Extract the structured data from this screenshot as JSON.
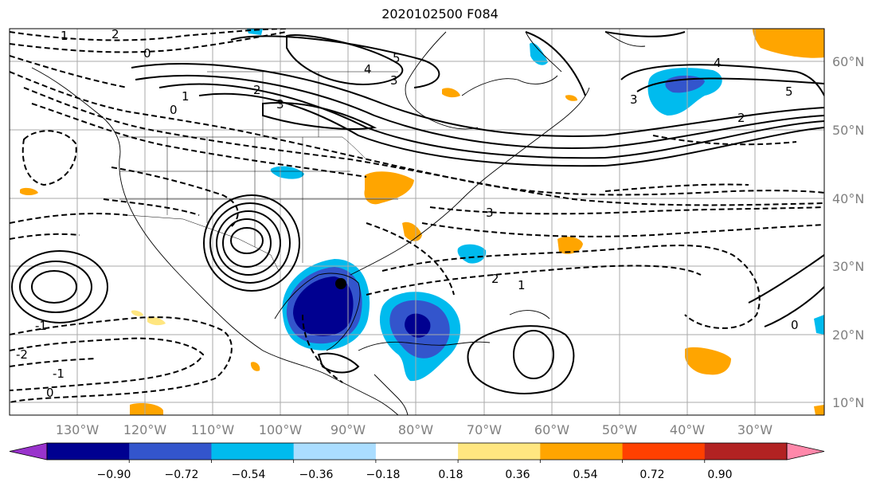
{
  "title": "2020102500 F084",
  "lat_labels": [
    "60°N",
    "50°N",
    "40°N",
    "30°N",
    "20°N",
    "10°N"
  ],
  "lon_labels": [
    "130°W",
    "120°W",
    "110°W",
    "100°W",
    "90°W",
    "80°W",
    "70°W",
    "60°W",
    "50°W",
    "40°W",
    "30°W"
  ],
  "colorbar": {
    "ticks": [
      "−0.90",
      "−0.72",
      "−0.54",
      "−0.36",
      "−0.18",
      "0.18",
      "0.36",
      "0.54",
      "0.72",
      "0.90"
    ],
    "colors": [
      "#9933cc",
      "#000090",
      "#3355cc",
      "#00bbee",
      "#aaddff",
      "#ffffff",
      "#ffe680",
      "#ffa500",
      "#ff4000",
      "#b22222",
      "#ff88aa"
    ]
  },
  "contour_labels": [
    "0",
    "1",
    "2",
    "3",
    "4",
    "5",
    "3",
    "2",
    "1",
    "0",
    "-1",
    "0",
    "2",
    "3",
    "0",
    "1",
    "2",
    "-1",
    "-2",
    "3",
    "4",
    "5"
  ]
}
